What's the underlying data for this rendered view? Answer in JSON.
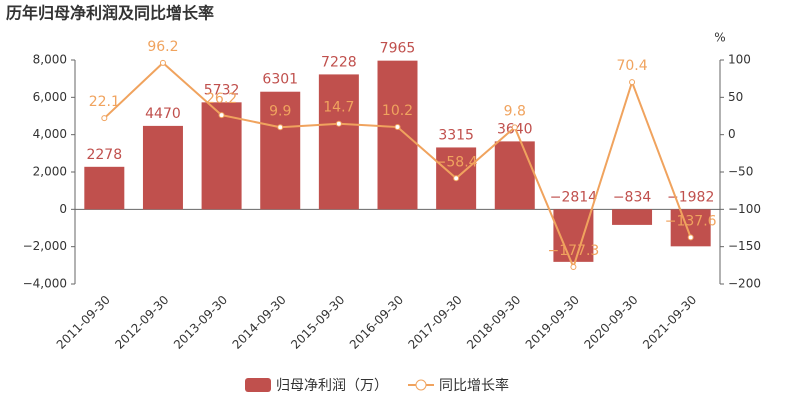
{
  "chart_data": {
    "type": "bar-line",
    "title": "历年归母净利润及同比增长率",
    "y2_label": "%",
    "categories": [
      "2011-09-30",
      "2012-09-30",
      "2013-09-30",
      "2014-09-30",
      "2015-09-30",
      "2016-09-30",
      "2017-09-30",
      "2018-09-30",
      "2019-09-30",
      "2020-09-30",
      "2021-09-30"
    ],
    "series": [
      {
        "name": "归母净利润（万）",
        "type": "bar",
        "color": "#c0504d",
        "values": [
          2278,
          4470,
          5732,
          6301,
          7228,
          7965,
          3315,
          3640,
          -2814,
          -834,
          -1982
        ],
        "value_labels": [
          "2278",
          "4470",
          "5732",
          "6301",
          "7228",
          "7965",
          "3315",
          "3640",
          "−2814",
          "−834",
          "−1982"
        ]
      },
      {
        "name": "同比增长率",
        "type": "line",
        "axis": "y2",
        "color": "#f0a35e",
        "values": [
          22.1,
          96.2,
          26.2,
          9.9,
          14.7,
          10.2,
          -58.4,
          9.8,
          -177.3,
          70.4,
          -137.6
        ],
        "value_labels": [
          "22.1",
          "96.2",
          "26.2",
          "9.9",
          "14.7",
          "10.2",
          "−58.4",
          "9.8",
          "−177.3",
          "70.4",
          "−137.6"
        ]
      }
    ],
    "ylim": [
      -4000,
      8000
    ],
    "yticks": [
      {
        "value": -4000,
        "label": "−4,000"
      },
      {
        "value": -2000,
        "label": "−2,000"
      },
      0,
      {
        "value": 2000,
        "label": "2,000"
      },
      {
        "value": 4000,
        "label": "4,000"
      },
      {
        "value": 6000,
        "label": "6,000"
      },
      {
        "value": 8000,
        "label": "8,000"
      }
    ],
    "y2lim": [
      -200,
      100
    ],
    "y2ticks": [
      {
        "value": -200,
        "label": "−200"
      },
      {
        "value": -150,
        "label": "−150"
      },
      {
        "value": -100,
        "label": "−100"
      },
      {
        "value": -50,
        "label": "−50"
      },
      0,
      50,
      100
    ],
    "legend": "bottom"
  }
}
